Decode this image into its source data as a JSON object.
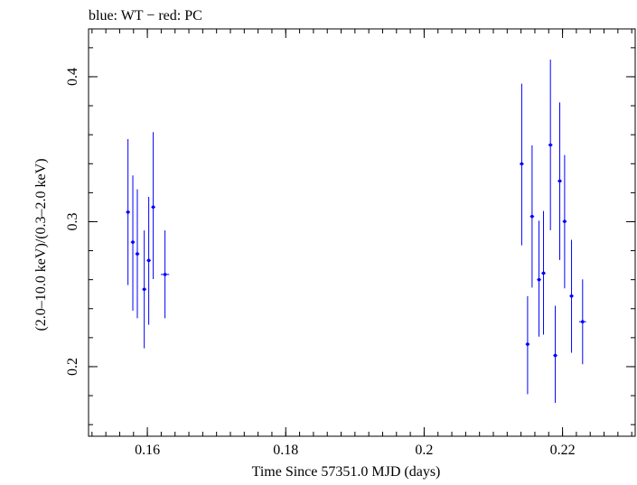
{
  "chart_data": {
    "type": "scatter",
    "title": "blue: WT − red: PC",
    "xlabel": "Time Since 57351.0 MJD (days)",
    "ylabel": "(2.0–10.0 keV)/(0.3–2.0 keV)",
    "xlim": [
      0.1515,
      0.2305
    ],
    "ylim": [
      0.152,
      0.433
    ],
    "x_ticks": [
      0.16,
      0.18,
      0.2,
      0.22
    ],
    "x_tick_labels": [
      "0.16",
      "0.18",
      "0.2",
      "0.22"
    ],
    "y_ticks": [
      0.2,
      0.3,
      0.4
    ],
    "y_tick_labels": [
      "0.2",
      "0.3",
      "0.4"
    ],
    "grid": false,
    "series": [
      {
        "color": "#0000ff",
        "points": [
          {
            "x": 0.1572,
            "y": 0.3066,
            "xerr": 0.0003,
            "ylo": 0.2563,
            "yhi": 0.357
          },
          {
            "x": 0.1579,
            "y": 0.2859,
            "xerr": 0.0003,
            "ylo": 0.2386,
            "yhi": 0.3319
          },
          {
            "x": 0.15855,
            "y": 0.2778,
            "xerr": 0.0003,
            "ylo": 0.2334,
            "yhi": 0.3223
          },
          {
            "x": 0.15955,
            "y": 0.2534,
            "xerr": 0.0003,
            "ylo": 0.2127,
            "yhi": 0.294
          },
          {
            "x": 0.1602,
            "y": 0.2733,
            "xerr": 0.0003,
            "ylo": 0.2289,
            "yhi": 0.3171
          },
          {
            "x": 0.16085,
            "y": 0.3101,
            "xerr": 0.0003,
            "ylo": 0.2604,
            "yhi": 0.3618
          },
          {
            "x": 0.16255,
            "y": 0.2636,
            "xerr": 0.0006,
            "ylo": 0.2334,
            "yhi": 0.294
          },
          {
            "x": 0.2141,
            "y": 0.3399,
            "xerr": 0.0003,
            "ylo": 0.2837,
            "yhi": 0.3952
          },
          {
            "x": 0.21495,
            "y": 0.2155,
            "xerr": 0.0003,
            "ylo": 0.181,
            "yhi": 0.2486
          },
          {
            "x": 0.2156,
            "y": 0.3036,
            "xerr": 0.0003,
            "ylo": 0.2546,
            "yhi": 0.3526
          },
          {
            "x": 0.2166,
            "y": 0.26,
            "xerr": 0.0003,
            "ylo": 0.2207,
            "yhi": 0.3007
          },
          {
            "x": 0.21725,
            "y": 0.2645,
            "xerr": 0.0003,
            "ylo": 0.2221,
            "yhi": 0.3074
          },
          {
            "x": 0.21825,
            "y": 0.3529,
            "xerr": 0.0003,
            "ylo": 0.2941,
            "yhi": 0.4118
          },
          {
            "x": 0.21895,
            "y": 0.2077,
            "xerr": 0.0003,
            "ylo": 0.175,
            "yhi": 0.242
          },
          {
            "x": 0.2196,
            "y": 0.3281,
            "xerr": 0.0003,
            "ylo": 0.2736,
            "yhi": 0.3823
          },
          {
            "x": 0.2203,
            "y": 0.3002,
            "xerr": 0.0003,
            "ylo": 0.254,
            "yhi": 0.346
          },
          {
            "x": 0.2213,
            "y": 0.2487,
            "xerr": 0.0003,
            "ylo": 0.2096,
            "yhi": 0.2875
          },
          {
            "x": 0.2229,
            "y": 0.231,
            "xerr": 0.0005,
            "ylo": 0.2017,
            "yhi": 0.2602
          }
        ]
      }
    ]
  }
}
